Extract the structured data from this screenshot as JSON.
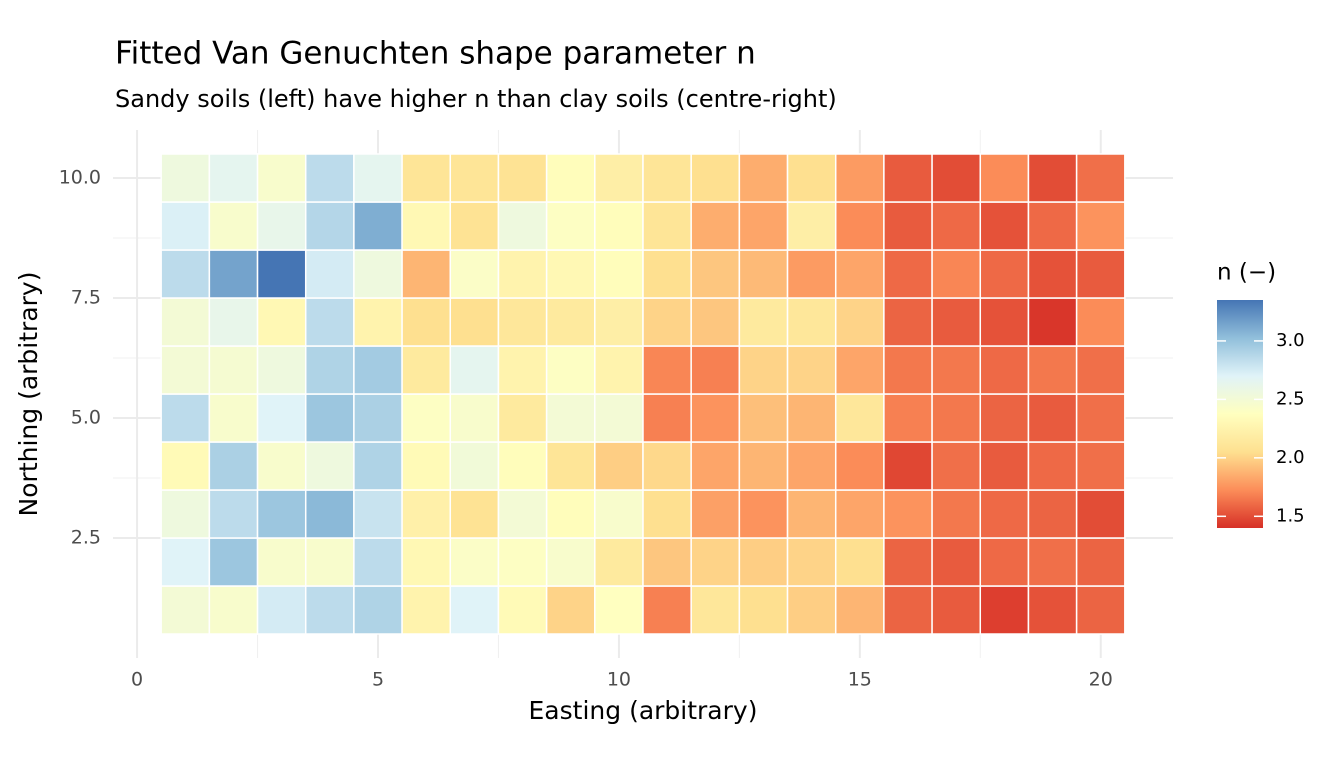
{
  "chart_data": {
    "type": "heatmap",
    "title": "Fitted Van Genuchten shape parameter n",
    "subtitle": "Sandy soils (left) have higher n than clay soils (centre-right)",
    "x_label": "Easting (arbitrary)",
    "y_label": "Northing (arbitrary)",
    "legend_title": "n (−)",
    "x": [
      1,
      2,
      3,
      4,
      5,
      6,
      7,
      8,
      9,
      10,
      11,
      12,
      13,
      14,
      15,
      16,
      17,
      18,
      19,
      20
    ],
    "y": [
      1,
      2,
      3,
      4,
      5,
      6,
      7,
      8,
      9,
      10
    ],
    "values": [
      [
        2.5,
        2.45,
        2.75,
        2.85,
        2.9,
        2.25,
        2.7,
        2.32,
        2.0,
        2.38,
        1.68,
        2.12,
        2.05,
        1.98,
        1.88,
        1.58,
        1.55,
        1.45,
        1.52,
        1.58
      ],
      [
        2.7,
        2.98,
        2.45,
        2.45,
        2.85,
        2.3,
        2.42,
        2.4,
        2.45,
        2.15,
        1.95,
        2.0,
        1.98,
        2.0,
        2.05,
        1.58,
        1.55,
        1.6,
        1.62,
        1.58
      ],
      [
        2.55,
        2.85,
        2.98,
        3.05,
        2.8,
        2.22,
        2.08,
        2.5,
        2.35,
        2.45,
        2.05,
        1.8,
        1.75,
        1.88,
        1.82,
        1.75,
        1.65,
        1.6,
        1.58,
        1.5
      ],
      [
        2.32,
        2.92,
        2.45,
        2.55,
        2.9,
        2.32,
        2.52,
        2.35,
        2.1,
        1.98,
        2.02,
        1.82,
        1.88,
        1.82,
        1.72,
        1.48,
        1.62,
        1.55,
        1.6,
        1.62
      ],
      [
        2.85,
        2.45,
        2.7,
        2.98,
        2.92,
        2.4,
        2.45,
        2.15,
        2.5,
        2.5,
        1.68,
        1.75,
        1.92,
        1.88,
        2.12,
        1.68,
        1.65,
        1.58,
        1.55,
        1.62
      ],
      [
        2.5,
        2.48,
        2.55,
        2.9,
        2.95,
        2.15,
        2.65,
        2.25,
        2.4,
        2.25,
        1.7,
        1.68,
        2.0,
        2.0,
        1.82,
        1.65,
        1.65,
        1.6,
        1.65,
        1.62
      ],
      [
        2.5,
        2.62,
        2.3,
        2.85,
        2.25,
        2.05,
        2.05,
        2.12,
        2.15,
        2.2,
        2.0,
        1.95,
        2.15,
        2.12,
        2.0,
        1.58,
        1.55,
        1.52,
        1.42,
        1.72
      ],
      [
        2.85,
        3.15,
        3.35,
        2.75,
        2.55,
        1.88,
        2.42,
        2.25,
        2.3,
        2.35,
        2.05,
        1.95,
        1.9,
        1.78,
        1.82,
        1.6,
        1.7,
        1.6,
        1.52,
        1.55
      ],
      [
        2.72,
        2.45,
        2.62,
        2.88,
        3.1,
        2.3,
        2.08,
        2.55,
        2.4,
        2.35,
        2.1,
        1.85,
        1.82,
        2.2,
        1.72,
        1.55,
        1.6,
        1.52,
        1.6,
        1.75
      ],
      [
        2.55,
        2.65,
        2.45,
        2.85,
        2.65,
        2.1,
        2.1,
        2.08,
        2.35,
        2.2,
        2.1,
        2.05,
        1.85,
        2.05,
        1.78,
        1.55,
        1.5,
        1.72,
        1.5,
        1.62
      ]
    ],
    "palette": [
      "#d73027",
      "#fc8d59",
      "#fee090",
      "#ffffbf",
      "#e0f3f8",
      "#91bfdb",
      "#4575b4"
    ],
    "color_lim": [
      1.4,
      3.35
    ],
    "color_ticks": [
      1.5,
      {
        "value": 2,
        "label": "2.0"
      },
      2.5,
      {
        "value": 3,
        "label": "3.0"
      }
    ],
    "xlim": [
      -0.5,
      21.5
    ],
    "xticks": [
      0,
      5,
      10,
      15,
      20
    ],
    "ylim": [
      0,
      11
    ],
    "yticks": [
      2.5,
      {
        "value": 5,
        "label": "5.0"
      },
      7.5,
      {
        "value": 10,
        "label": "10.0"
      }
    ],
    "grid": true
  }
}
